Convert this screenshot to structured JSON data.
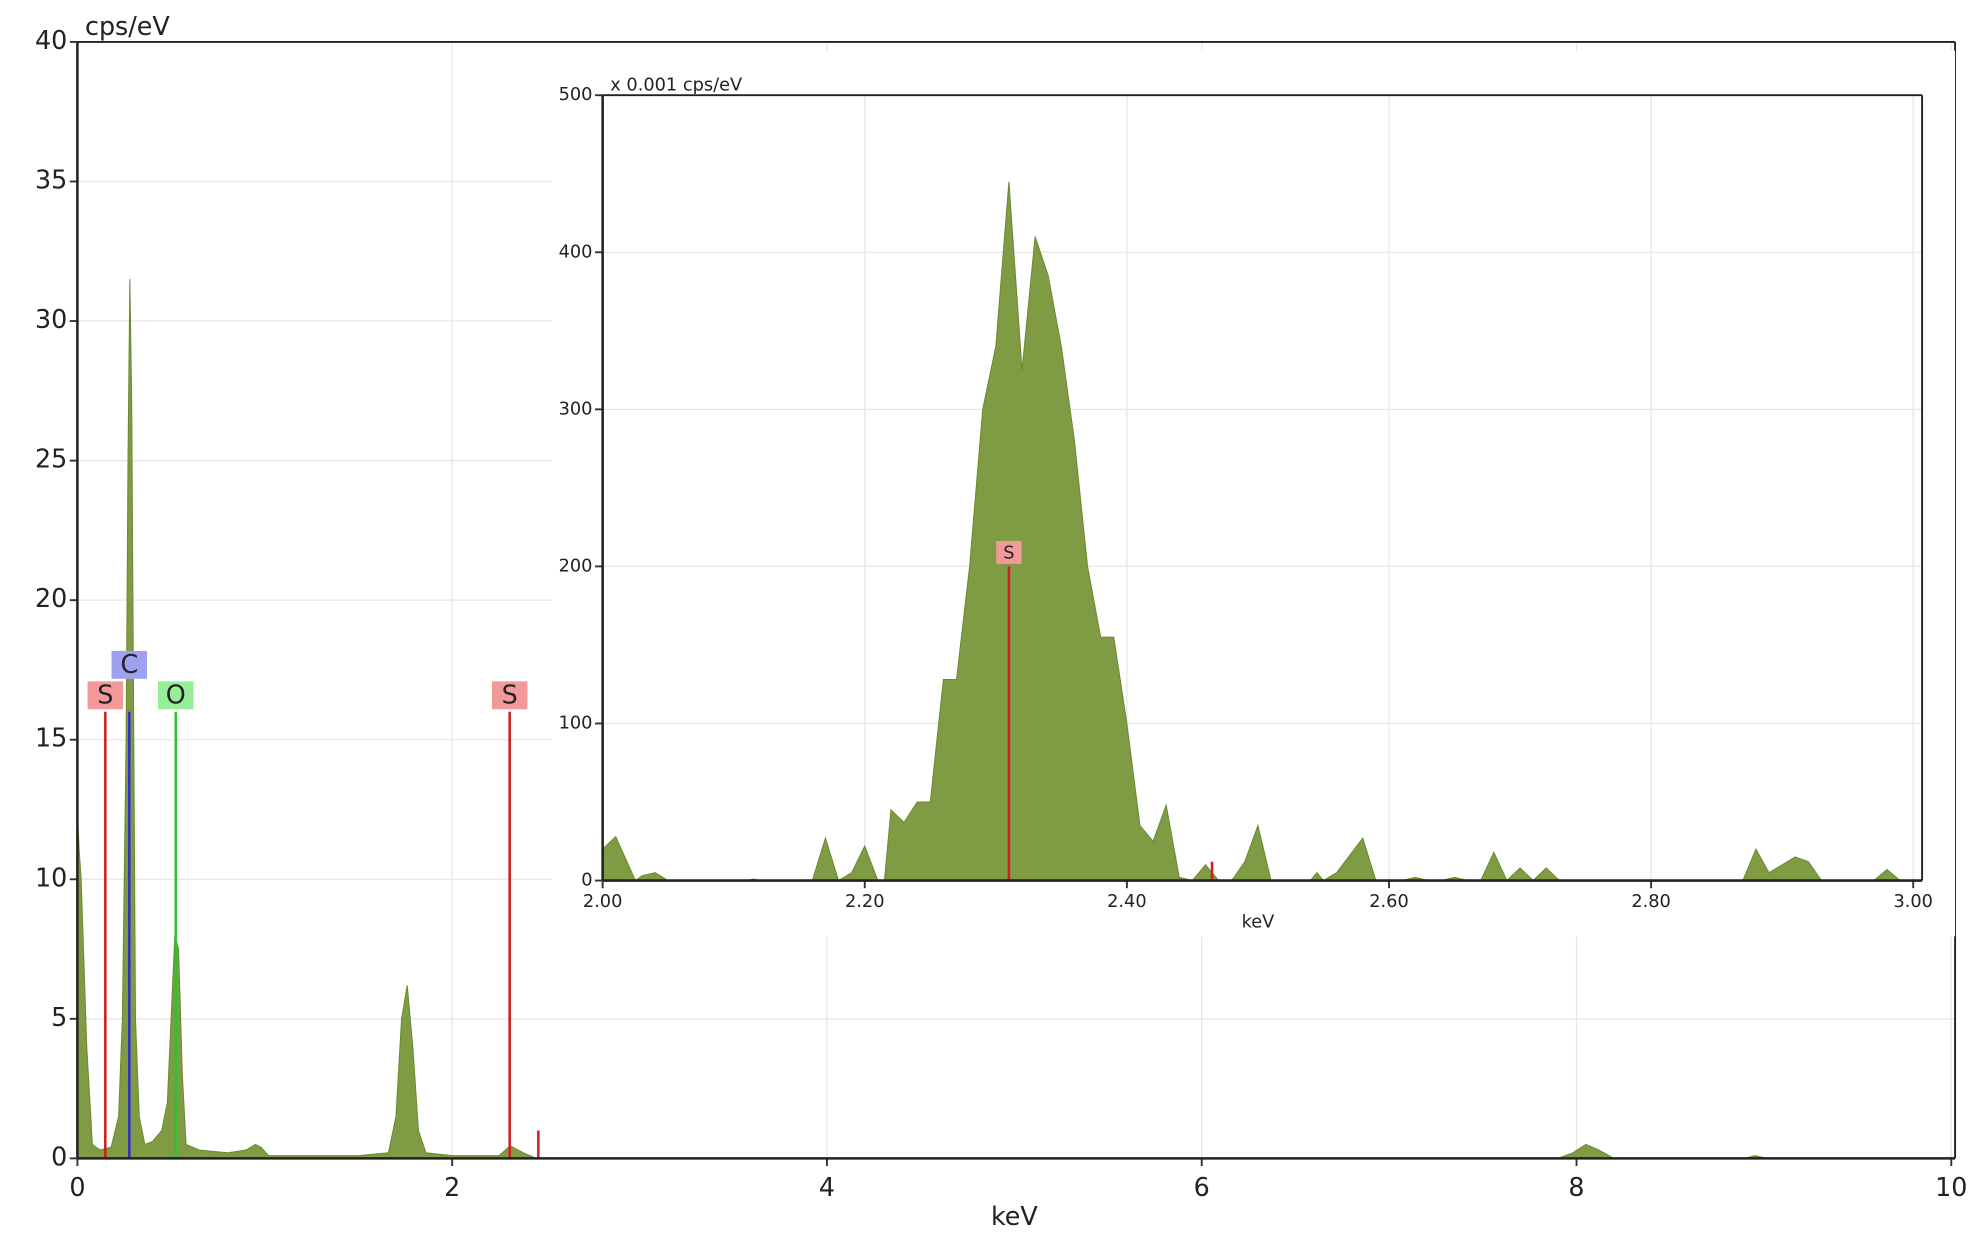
{
  "chart_data": [
    {
      "type": "area",
      "ylabel": "cps/eV",
      "xlabel": "keV",
      "color": "#7f9c45",
      "grid": true,
      "xlim": [
        0,
        10
      ],
      "xticks": [
        0,
        2,
        4,
        6,
        8,
        10
      ],
      "ylim": [
        0,
        40
      ],
      "yticks": [
        0,
        5,
        10,
        15,
        20,
        25,
        30,
        35,
        40
      ],
      "x": [
        0.0,
        0.01,
        0.02,
        0.05,
        0.08,
        0.12,
        0.18,
        0.22,
        0.24,
        0.26,
        0.27,
        0.28,
        0.29,
        0.3,
        0.31,
        0.33,
        0.36,
        0.4,
        0.45,
        0.48,
        0.5,
        0.52,
        0.54,
        0.56,
        0.58,
        0.65,
        0.8,
        0.9,
        0.95,
        0.98,
        1.02,
        1.5,
        1.66,
        1.7,
        1.73,
        1.76,
        1.79,
        1.82,
        1.86,
        2.0,
        2.25,
        2.31,
        2.38,
        2.45,
        7.9,
        7.98,
        8.05,
        8.12,
        8.2,
        8.9,
        8.95,
        9.02,
        10.0
      ],
      "values": [
        12.4,
        11,
        10,
        4,
        0.5,
        0.3,
        0.4,
        1.5,
        5,
        15,
        25,
        31.5,
        27,
        16,
        5,
        1.5,
        0.5,
        0.6,
        1,
        2,
        5,
        8,
        7.5,
        3,
        0.5,
        0.3,
        0.2,
        0.3,
        0.5,
        0.4,
        0.1,
        0.1,
        0.2,
        1.5,
        5,
        6.2,
        4,
        1,
        0.2,
        0.1,
        0.1,
        0.45,
        0.2,
        0,
        0,
        0.2,
        0.5,
        0.3,
        0,
        0,
        0.1,
        0,
        0
      ],
      "markers": [
        {
          "label": "S",
          "x": 0.149,
          "height": 16,
          "color": "#cc2020",
          "label_color": "#f29a9a"
        },
        {
          "label": "C",
          "x": 0.277,
          "height": 16,
          "color": "#3030c8",
          "label_color": "#a0a0f0"
        },
        {
          "label": "O",
          "x": 0.525,
          "height": 16,
          "color": "#30c030",
          "label_color": "#98ee98"
        },
        {
          "label": "S",
          "x": 2.307,
          "height": 16,
          "color": "#cc2020",
          "label_color": "#f29a9a"
        },
        {
          "x": 2.46,
          "height": 1,
          "color": "#cc2020"
        }
      ]
    },
    {
      "type": "area",
      "ylabel": "x 0.001 cps/eV",
      "xlabel": "keV",
      "color": "#7f9c45",
      "grid": true,
      "xlim": [
        2.0,
        3.0
      ],
      "xticks": [
        {
          "value": 2.0,
          "label": "2.00"
        },
        {
          "value": 2.2,
          "label": "2.20"
        },
        {
          "value": 2.4,
          "label": "2.40"
        },
        {
          "value": 2.6,
          "label": "2.60"
        },
        {
          "value": 2.8,
          "label": "2.80"
        },
        {
          "value": 3.0,
          "label": "3.00"
        }
      ],
      "ylim": [
        0,
        500
      ],
      "yticks": [
        0,
        100,
        200,
        300,
        400,
        500
      ],
      "x": [
        2.0,
        2.01,
        2.025,
        2.03,
        2.04,
        2.05,
        2.11,
        2.115,
        2.12,
        2.16,
        2.17,
        2.18,
        2.19,
        2.2,
        2.21,
        2.215,
        2.22,
        2.23,
        2.24,
        2.25,
        2.26,
        2.27,
        2.28,
        2.29,
        2.3,
        2.31,
        2.32,
        2.33,
        2.34,
        2.35,
        2.36,
        2.37,
        2.38,
        2.39,
        2.4,
        2.41,
        2.42,
        2.43,
        2.44,
        2.45,
        2.46,
        2.47,
        2.48,
        2.49,
        2.5,
        2.51,
        2.54,
        2.545,
        2.55,
        2.56,
        2.58,
        2.59,
        2.61,
        2.62,
        2.63,
        2.64,
        2.65,
        2.66,
        2.67,
        2.68,
        2.69,
        2.7,
        2.71,
        2.72,
        2.73,
        2.87,
        2.88,
        2.89,
        2.91,
        2.92,
        2.93,
        2.97,
        2.98,
        2.99,
        3.0
      ],
      "values": [
        20,
        28,
        0,
        3,
        5,
        0,
        0,
        1,
        0,
        0,
        27,
        0,
        5,
        22,
        0,
        0,
        45,
        37,
        50,
        50,
        128,
        128,
        200,
        300,
        340,
        445,
        325,
        410,
        385,
        340,
        280,
        200,
        155,
        155,
        100,
        35,
        25,
        48,
        2,
        0,
        10,
        0,
        0,
        12,
        35,
        0,
        0,
        5,
        0,
        5,
        27,
        0,
        0,
        2,
        0,
        0,
        2,
        0,
        0,
        18,
        0,
        8,
        0,
        8,
        0,
        0,
        20,
        5,
        15,
        12,
        0,
        0,
        7,
        0,
        0
      ],
      "markers": [
        {
          "label": "S",
          "x": 2.31,
          "height": 200,
          "color": "#cc2020",
          "label_color": "#f29a9a"
        },
        {
          "x": 2.465,
          "height": 12,
          "color": "#cc2020"
        }
      ]
    }
  ]
}
